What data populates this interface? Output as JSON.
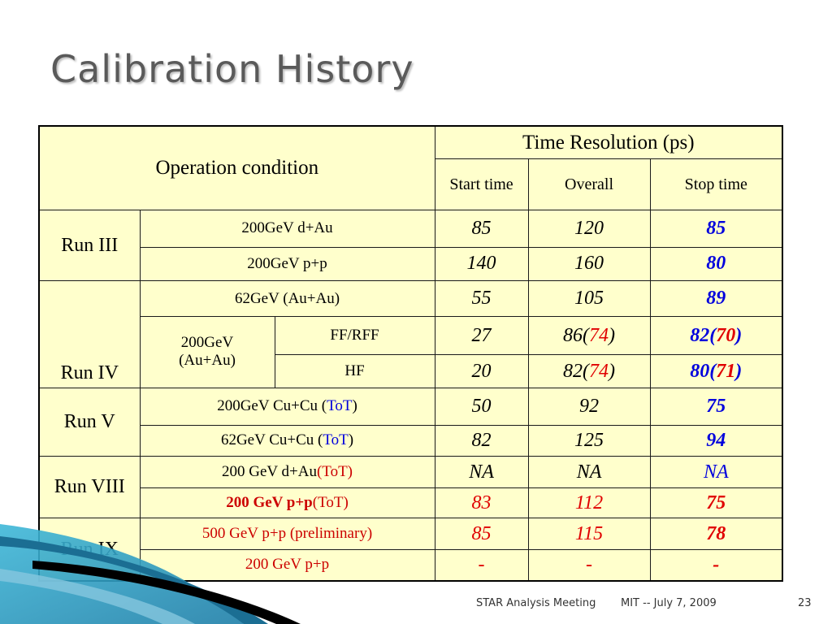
{
  "slide": {
    "title": "Calibration History",
    "footer_left": "STAR Analysis Meeting",
    "footer_mid": "MIT -- July 7, 2009",
    "page_number": "23"
  },
  "table": {
    "header_condition": "Operation condition",
    "header_resolution": "Time Resolution (ps)",
    "col_start": "Start time",
    "col_overall": "Overall",
    "col_stop": "Stop time",
    "runs": {
      "run3": "Run III",
      "run4": "Run IV",
      "run5": "Run V",
      "run8": "Run VIII",
      "run9": "Run IX"
    },
    "rows": {
      "r1": {
        "cond": "200GeV d+Au",
        "start": "85",
        "overall": "120",
        "stop": "85"
      },
      "r2": {
        "cond": "200GeV p+p",
        "start": "140",
        "overall": "160",
        "stop": "80"
      },
      "r3": {
        "cond": "62GeV (Au+Au)",
        "start": "55",
        "overall": "105",
        "stop": "89"
      },
      "r4": {
        "group": "200GeV (Au+Au)",
        "cond": "FF/RFF",
        "start": "27",
        "overall": "86",
        "overall_paren": "74",
        "stop": "82",
        "stop_paren": "70"
      },
      "r5": {
        "cond": "HF",
        "start": "20",
        "overall": "82",
        "overall_paren": "74",
        "stop": "80",
        "stop_paren": "71"
      },
      "r6": {
        "cond": "200GeV Cu+Cu (",
        "cond_tot": "ToT",
        "cond_close": ")",
        "start": "50",
        "overall": "92",
        "stop": "75"
      },
      "r7": {
        "cond": "62GeV Cu+Cu (",
        "cond_tot": "ToT",
        "cond_close": ")",
        "start": "82",
        "overall": "125",
        "stop": "94"
      },
      "r8": {
        "cond": "200 GeV d+Au",
        "cond_tot": "(ToT)",
        "start": "NA",
        "overall": "NA",
        "stop": "NA"
      },
      "r9": {
        "cond": "200 GeV p+p",
        "cond_tot": "(ToT)",
        "start": "83",
        "overall": "112",
        "stop": "75"
      },
      "r10": {
        "cond": "500 GeV p+p (preliminary)",
        "start": "85",
        "overall": "115",
        "stop": "78"
      },
      "r11": {
        "cond": "200 GeV p+p",
        "start": "-",
        "overall": "-",
        "stop": "-"
      }
    }
  },
  "colors": {
    "title": "#5a5a5a",
    "table_bg": "#ffffcc",
    "blue": "#0000dd",
    "red": "#e00000",
    "deco_blue": "#2aa6c8"
  }
}
